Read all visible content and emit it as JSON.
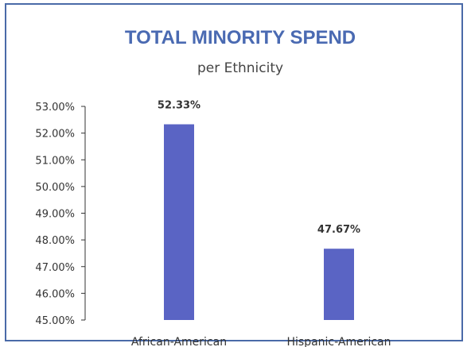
{
  "chart_data": {
    "type": "bar",
    "title": "TOTAL MINORITY SPEND",
    "subtitle": "per Ethnicity",
    "categories": [
      "African-American",
      "Hispanic-American"
    ],
    "values": [
      52.33,
      47.67
    ],
    "data_labels": [
      "52.33%",
      "47.67%"
    ],
    "ylim": [
      45,
      53
    ],
    "yticks": [
      53,
      52,
      51,
      50,
      49,
      48,
      47,
      46,
      45
    ],
    "ytick_labels": [
      "53.00%",
      "52.00%",
      "51.00%",
      "50.00%",
      "49.00%",
      "48.00%",
      "47.00%",
      "46.00%",
      "45.00%"
    ],
    "xlabel": "",
    "ylabel": "",
    "grid": false,
    "legend": "none",
    "bar_color": "#5a64c4",
    "title_color": "#4a6ab2",
    "border_color": "#4a6aa8"
  }
}
